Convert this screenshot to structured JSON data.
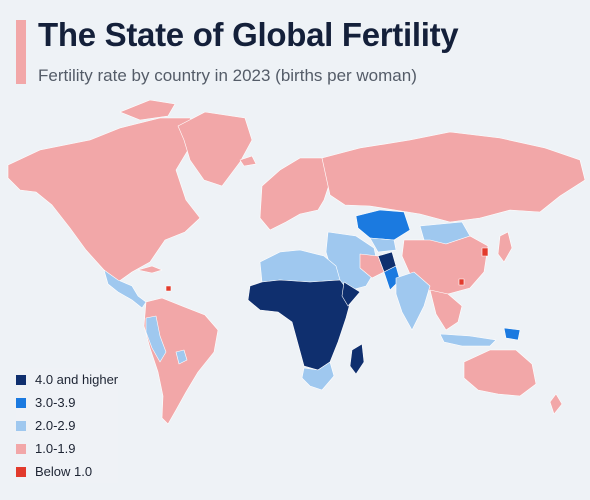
{
  "header": {
    "title": "The State of Global Fertility",
    "subtitle": "Fertility rate by country in 2023 (births per woman)",
    "accent_color": "#f2a7a8"
  },
  "map": {
    "land_color": "#f2a7a8",
    "border_color": "#ffffff"
  },
  "legend": {
    "items": [
      {
        "label": "4.0 and higher",
        "color": "#0f2f6e"
      },
      {
        "label": "3.0-3.9",
        "color": "#1b7ae0"
      },
      {
        "label": "2.0-2.9",
        "color": "#9fc8ef"
      },
      {
        "label": "1.0-1.9",
        "color": "#f2a7a8"
      },
      {
        "label": "Below 1.0",
        "color": "#e23a2c"
      }
    ]
  }
}
